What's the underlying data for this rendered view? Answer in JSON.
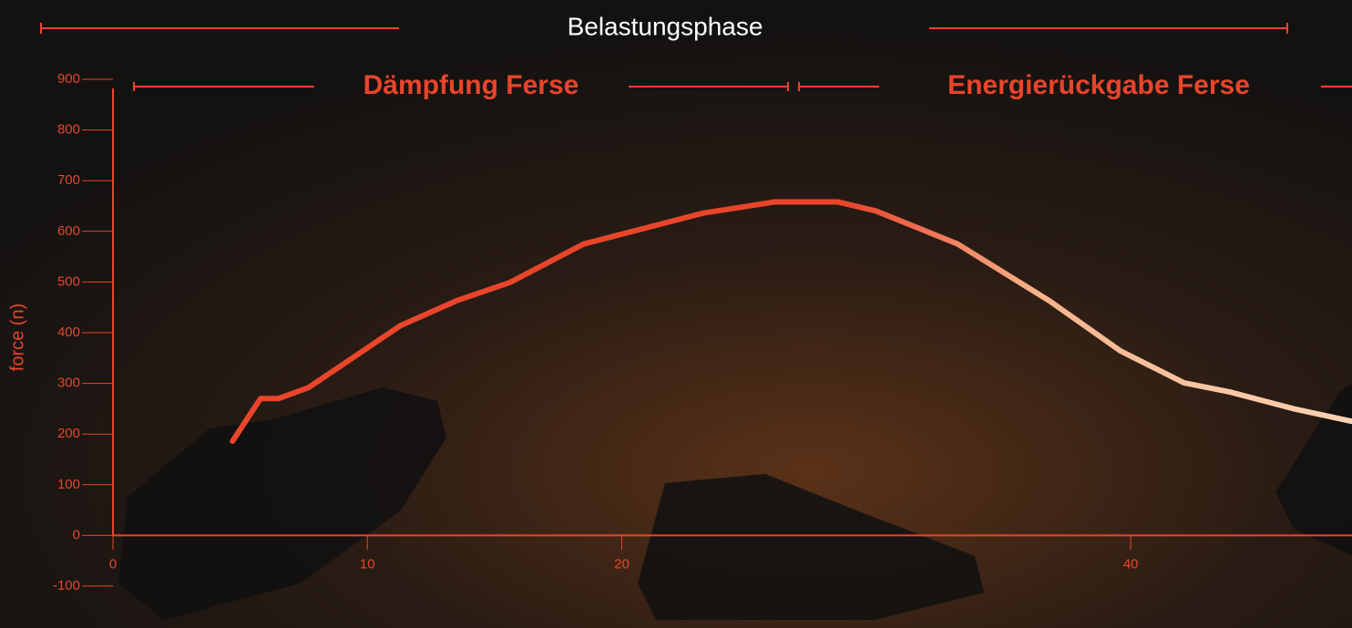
{
  "chart_data": {
    "type": "line",
    "title": "Belastungsphase",
    "phases": [
      "Dämpfung Ferse",
      "Energierückgabe Ferse"
    ],
    "y_label": "force (n)",
    "x": [
      4.7,
      5.8,
      6.5,
      7.7,
      11.3,
      13.5,
      15.6,
      18.5,
      23.2,
      26.0,
      28.5,
      30.0,
      33.2,
      36.8,
      39.6,
      42.1,
      43.9,
      46.4,
      48.7
    ],
    "series": [
      {
        "color": "#e8452b",
        "values": [
          186,
          270,
          270,
          292,
          414,
          463,
          499,
          575,
          636,
          658,
          658,
          640,
          575,
          463,
          364,
          301,
          283,
          250,
          225
        ]
      }
    ],
    "xlim": [
      0,
      48.7
    ],
    "xticks": [
      0,
      10,
      20,
      40
    ],
    "ylim": [
      -100,
      900
    ],
    "yticks": [
      -100,
      0,
      100,
      200,
      300,
      400,
      500,
      600,
      700,
      800,
      900
    ]
  }
}
